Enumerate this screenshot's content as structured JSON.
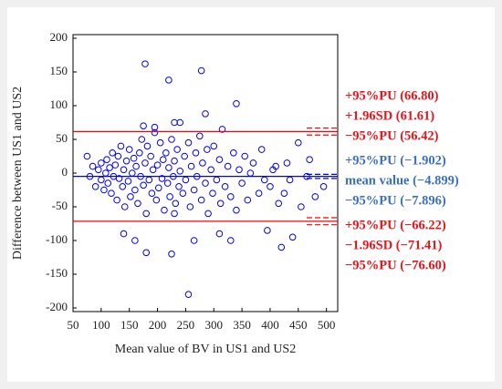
{
  "chart_data": {
    "type": "scatter",
    "x_label": "Mean value of BV in US1 and US2",
    "y_label": "Difference between US1 and US2",
    "xlim": [
      50,
      520
    ],
    "xticks": [
      50,
      100,
      150,
      200,
      250,
      300,
      350,
      400,
      450,
      500
    ],
    "ylim": [
      -200,
      200
    ],
    "yticks": [
      -200,
      -150,
      -100,
      -50,
      0,
      50,
      100,
      150,
      200
    ],
    "color": "#0000ff",
    "x": [
      80,
      85,
      90,
      95,
      100,
      100,
      105,
      108,
      110,
      112,
      115,
      118,
      120,
      122,
      125,
      128,
      130,
      132,
      135,
      138,
      140,
      142,
      145,
      148,
      150,
      152,
      155,
      158,
      160,
      162,
      165,
      168,
      170,
      172,
      175,
      178,
      180,
      182,
      185,
      188,
      190,
      192,
      195,
      198,
      200,
      202,
      205,
      208,
      210,
      212,
      215,
      218,
      220,
      222,
      225,
      228,
      230,
      232,
      235,
      238,
      240,
      245,
      248,
      250,
      255,
      258,
      260,
      265,
      268,
      270,
      275,
      278,
      280,
      285,
      288,
      290,
      295,
      298,
      300,
      305,
      310,
      312,
      315,
      320,
      325,
      330,
      335,
      340,
      345,
      350,
      355,
      360,
      365,
      370,
      380,
      385,
      390,
      400,
      415,
      425,
      435,
      455,
      480,
      178,
      278,
      220,
      255,
      180,
      225,
      340,
      395,
      420,
      440,
      495,
      465,
      470,
      450,
      430,
      410,
      405,
      330,
      310,
      265,
      240,
      285,
      230,
      160,
      140,
      75,
      175,
      195,
      230
    ],
    "values": [
      -5,
      10,
      -20,
      5,
      -10,
      15,
      -25,
      0,
      20,
      -15,
      8,
      -30,
      30,
      -5,
      12,
      -40,
      25,
      -8,
      40,
      -20,
      5,
      -50,
      18,
      -12,
      35,
      -35,
      0,
      22,
      -25,
      10,
      -45,
      30,
      -5,
      50,
      -18,
      15,
      -60,
      40,
      -10,
      25,
      -30,
      5,
      60,
      -40,
      12,
      -22,
      45,
      -8,
      20,
      -55,
      30,
      -15,
      8,
      -35,
      50,
      -5,
      18,
      -45,
      35,
      -20,
      3,
      -30,
      25,
      -10,
      45,
      -50,
      10,
      -25,
      30,
      -5,
      55,
      -40,
      15,
      -15,
      35,
      -60,
      5,
      -30,
      40,
      -10,
      20,
      -45,
      65,
      -20,
      10,
      -35,
      30,
      -55,
      5,
      -15,
      25,
      -40,
      0,
      15,
      -30,
      35,
      -10,
      -20,
      -45,
      -30,
      -10,
      -50,
      -35,
      162,
      152,
      138,
      -180,
      -118,
      -120,
      103,
      -85,
      -110,
      -95,
      -20,
      -5,
      20,
      45,
      15,
      10,
      5,
      -100,
      -90,
      -100,
      75,
      88,
      -60,
      -100,
      -90,
      25,
      70,
      68,
      75
    ],
    "lines": [
      {
        "label": "+95%PU (66.80)",
        "value": 66.8,
        "color": "#ff0000",
        "style": "dashed"
      },
      {
        "label": "+1.96SD (61.61)",
        "value": 61.61,
        "color": "#ff0000",
        "style": "solid"
      },
      {
        "label": "−95%PU (56.42)",
        "value": 56.42,
        "color": "#ff0000",
        "style": "dashed"
      },
      {
        "label": "+95%PU (−1.902)",
        "value": -1.902,
        "color": "#0000ff",
        "style": "dashed"
      },
      {
        "label": "mean value (−4.899)",
        "value": -4.899,
        "color": "#0000ff",
        "style": "solid"
      },
      {
        "label": "−95%PU (−7.896)",
        "value": -7.896,
        "color": "#0000ff",
        "style": "dashed"
      },
      {
        "label": "+95%PU (−66.22)",
        "value": -66.22,
        "color": "#ff0000",
        "style": "dashed"
      },
      {
        "label": "−1.96SD (−71.41)",
        "value": -71.41,
        "color": "#ff0000",
        "style": "solid"
      },
      {
        "label": "−95%PU (−76.60)",
        "value": -76.6,
        "color": "#ff0000",
        "style": "dashed"
      }
    ],
    "label_colors": [
      "#e8141a",
      "#e8141a",
      "#e8141a",
      "#3a6fc4",
      "#3a6fc4",
      "#3a6fc4",
      "#e8141a",
      "#e8141a",
      "#e8141a"
    ]
  }
}
